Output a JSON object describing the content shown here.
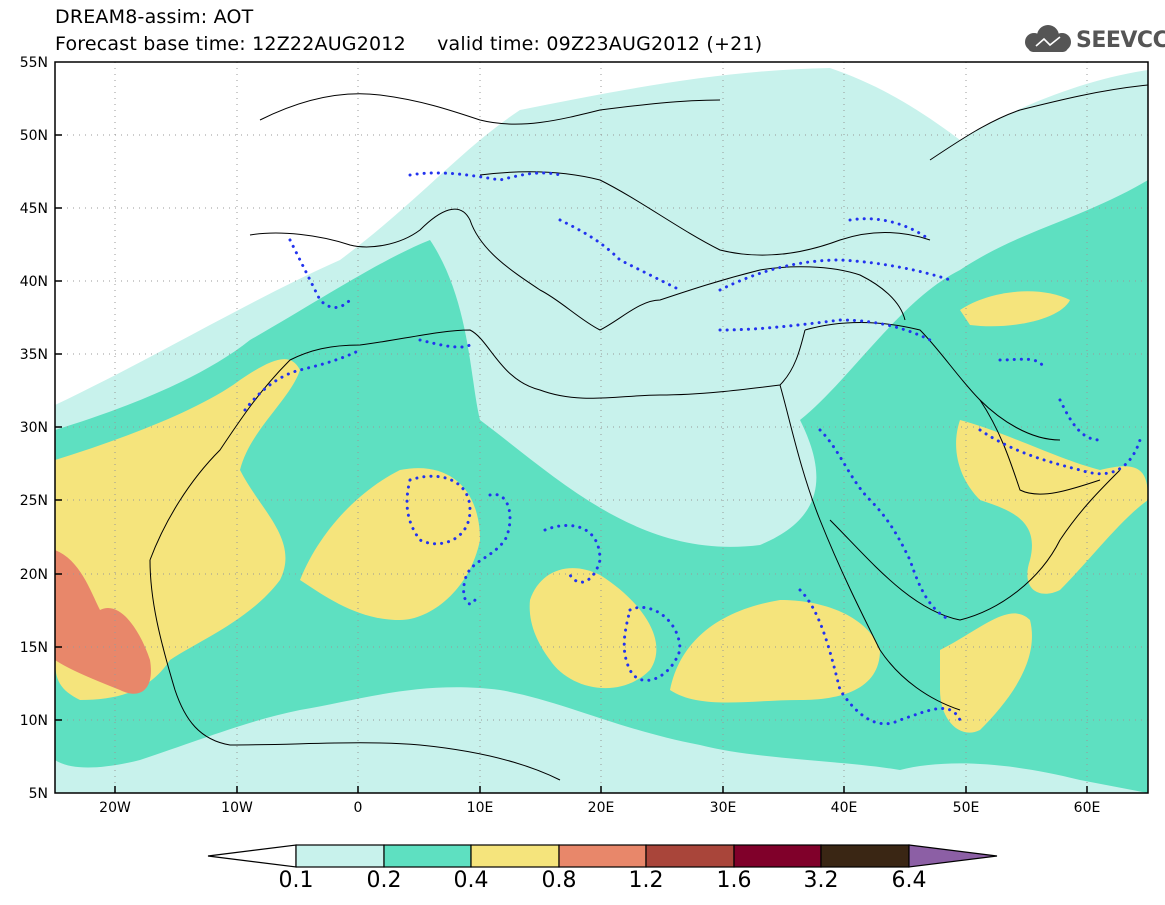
{
  "title": {
    "line1": "DREAM8-assim: AOT",
    "line2": "Forecast base time: 12Z22AUG2012     valid time: 09Z23AUG2012 (+21)"
  },
  "logo": {
    "text": "SEEVCCC",
    "icon": "cloud-icon"
  },
  "map": {
    "variable": "AOT",
    "region": {
      "lon": [
        -25,
        65
      ],
      "lat": [
        5,
        55
      ]
    },
    "lat_ticks": [
      "5N",
      "10N",
      "15N",
      "20N",
      "25N",
      "30N",
      "35N",
      "40N",
      "45N",
      "50N",
      "55N"
    ],
    "lon_ticks": [
      "20W",
      "10W",
      "0",
      "10E",
      "20E",
      "30E",
      "40E",
      "50E",
      "60E"
    ],
    "grid": "dotted"
  },
  "colorbar": {
    "labels": [
      "0.1",
      "0.2",
      "0.4",
      "0.8",
      "1.2",
      "1.6",
      "3.2",
      "6.4"
    ],
    "colors": [
      "#c8f2ec",
      "#5ee0c1",
      "#f5e47c",
      "#e8876a",
      "#a9453a",
      "#80002a",
      "#3a2614",
      "#8c5fa5"
    ],
    "under_color": "#ffffff"
  },
  "chart_data": {
    "type": "heatmap",
    "title": "DREAM8-assim: AOT",
    "subtitle": "Forecast base time: 12Z22AUG2012     valid time: 09Z23AUG2012 (+21)",
    "xlim": [
      -25,
      65
    ],
    "ylim": [
      5,
      55
    ],
    "levels": [
      0.1,
      0.2,
      0.4,
      0.8,
      1.2,
      1.6,
      3.2,
      6.4
    ],
    "x_ticks": [
      -20,
      -10,
      0,
      10,
      20,
      30,
      40,
      50,
      60
    ],
    "y_ticks": [
      5,
      10,
      15,
      20,
      25,
      30,
      35,
      40,
      45,
      50,
      55
    ]
  }
}
